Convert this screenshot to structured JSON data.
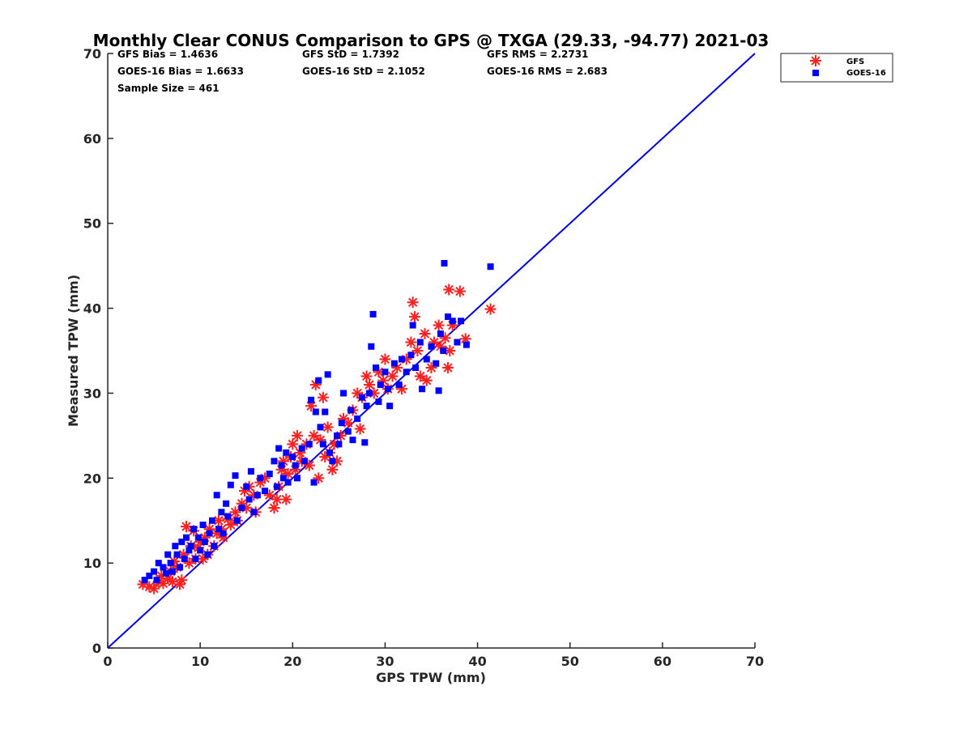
{
  "chart_data": {
    "type": "scatter",
    "title": "Monthly Clear CONUS Comparison to GPS @ TXGA (29.33, -94.77) 2021-03",
    "xlabel": "GPS TPW (mm)",
    "ylabel": "Measured TPW (mm)",
    "xlim": [
      0,
      70
    ],
    "ylim": [
      0,
      70
    ],
    "xticks": [
      "0",
      "10",
      "20",
      "30",
      "40",
      "50",
      "60",
      "70"
    ],
    "yticks": [
      "0",
      "10",
      "20",
      "30",
      "40",
      "50",
      "60",
      "70"
    ],
    "grid": false,
    "legend_position": "top-right outside",
    "stats": {
      "gfs_bias": "GFS Bias = 1.4636",
      "gfs_std": "GFS StD = 1.7392",
      "gfs_rms": "GFS RMS = 2.2731",
      "goes_bias": "GOES-16 Bias = 1.6633",
      "goes_std": "GOES-16 StD = 2.1052",
      "goes_rms": "GOES-16 RMS = 2.683",
      "sample_size": "Sample Size = 461"
    },
    "reference_line": {
      "x": [
        0,
        70
      ],
      "y": [
        0,
        70
      ],
      "color": "#0000dd"
    },
    "series": [
      {
        "name": "GFS",
        "marker": "asterisk",
        "color": "#ff2020",
        "points": [
          [
            3.8,
            7.5
          ],
          [
            4.5,
            7.2
          ],
          [
            5.0,
            7.0
          ],
          [
            5.5,
            7.8
          ],
          [
            5.8,
            8.5
          ],
          [
            6.0,
            7.6
          ],
          [
            6.5,
            8.2
          ],
          [
            6.8,
            9.0
          ],
          [
            7.0,
            7.8
          ],
          [
            7.2,
            10.2
          ],
          [
            7.5,
            9.5
          ],
          [
            7.8,
            7.5
          ],
          [
            8.0,
            8.0
          ],
          [
            8.2,
            11.0
          ],
          [
            8.5,
            14.3
          ],
          [
            8.8,
            10.0
          ],
          [
            9.0,
            12.0
          ],
          [
            9.3,
            13.8
          ],
          [
            9.5,
            10.5
          ],
          [
            9.8,
            11.8
          ],
          [
            10.0,
            12.5
          ],
          [
            10.3,
            10.5
          ],
          [
            10.5,
            13.0
          ],
          [
            10.8,
            11.0
          ],
          [
            11.0,
            14.0
          ],
          [
            11.5,
            12.0
          ],
          [
            11.8,
            13.5
          ],
          [
            12.0,
            15.0
          ],
          [
            12.3,
            14.0
          ],
          [
            12.5,
            13.0
          ],
          [
            13.0,
            15.2
          ],
          [
            13.3,
            14.5
          ],
          [
            13.8,
            16.0
          ],
          [
            14.0,
            15.0
          ],
          [
            14.5,
            17.0
          ],
          [
            14.8,
            18.5
          ],
          [
            15.0,
            16.5
          ],
          [
            15.3,
            19.0
          ],
          [
            15.8,
            18.0
          ],
          [
            16.0,
            16.0
          ],
          [
            16.5,
            19.5
          ],
          [
            17.0,
            20.0
          ],
          [
            17.5,
            18.0
          ],
          [
            18.0,
            16.5
          ],
          [
            18.3,
            17.5
          ],
          [
            18.5,
            19.0
          ],
          [
            18.8,
            21.0
          ],
          [
            19.0,
            22.0
          ],
          [
            19.3,
            17.5
          ],
          [
            19.5,
            20.5
          ],
          [
            19.8,
            22.5
          ],
          [
            20.0,
            24.0
          ],
          [
            20.3,
            21.0
          ],
          [
            20.5,
            25.0
          ],
          [
            20.8,
            23.0
          ],
          [
            21.0,
            22.0
          ],
          [
            21.5,
            24.0
          ],
          [
            21.8,
            21.5
          ],
          [
            22.0,
            28.5
          ],
          [
            22.3,
            25.0
          ],
          [
            22.5,
            31.0
          ],
          [
            22.8,
            20.0
          ],
          [
            23.0,
            24.5
          ],
          [
            23.3,
            29.5
          ],
          [
            23.5,
            22.5
          ],
          [
            23.8,
            26.0
          ],
          [
            24.0,
            23.0
          ],
          [
            24.3,
            21.0
          ],
          [
            24.5,
            24.0
          ],
          [
            24.8,
            22.0
          ],
          [
            25.2,
            25.0
          ],
          [
            25.5,
            27.0
          ],
          [
            26.0,
            26.5
          ],
          [
            26.5,
            28.0
          ],
          [
            27.0,
            30.0
          ],
          [
            27.3,
            25.8
          ],
          [
            27.5,
            29.5
          ],
          [
            28.0,
            32.0
          ],
          [
            28.3,
            31.0
          ],
          [
            28.8,
            30.0
          ],
          [
            29.3,
            32.5
          ],
          [
            29.8,
            31.5
          ],
          [
            30.0,
            34.0
          ],
          [
            30.3,
            30.5
          ],
          [
            30.8,
            32.0
          ],
          [
            31.3,
            33.0
          ],
          [
            31.8,
            30.5
          ],
          [
            32.3,
            34.0
          ],
          [
            32.8,
            36.0
          ],
          [
            33.0,
            40.7
          ],
          [
            33.2,
            39.0
          ],
          [
            33.5,
            35.0
          ],
          [
            33.8,
            32.0
          ],
          [
            34.3,
            37.0
          ],
          [
            34.5,
            31.5
          ],
          [
            35.0,
            33.0
          ],
          [
            35.3,
            36.0
          ],
          [
            35.8,
            38.0
          ],
          [
            36.0,
            35.5
          ],
          [
            36.5,
            36.5
          ],
          [
            36.8,
            33.0
          ],
          [
            37.0,
            35.0
          ],
          [
            36.9,
            42.2
          ],
          [
            37.3,
            38.0
          ],
          [
            38.1,
            42.0
          ],
          [
            38.7,
            36.4
          ],
          [
            41.4,
            39.9
          ]
        ]
      },
      {
        "name": "GOES-16",
        "marker": "square",
        "color": "#0000ff",
        "points": [
          [
            4.0,
            8.0
          ],
          [
            4.5,
            8.5
          ],
          [
            5.0,
            9.0
          ],
          [
            5.3,
            8.0
          ],
          [
            5.5,
            10.0
          ],
          [
            6.0,
            9.5
          ],
          [
            6.3,
            8.8
          ],
          [
            6.5,
            11.0
          ],
          [
            6.8,
            10.0
          ],
          [
            7.0,
            9.0
          ],
          [
            7.3,
            12.0
          ],
          [
            7.5,
            11.0
          ],
          [
            7.8,
            9.5
          ],
          [
            8.0,
            12.5
          ],
          [
            8.3,
            10.5
          ],
          [
            8.5,
            13.0
          ],
          [
            8.8,
            11.5
          ],
          [
            9.0,
            12.0
          ],
          [
            9.3,
            14.0
          ],
          [
            9.5,
            10.5
          ],
          [
            9.8,
            13.0
          ],
          [
            10.0,
            11.5
          ],
          [
            10.3,
            14.5
          ],
          [
            10.5,
            12.5
          ],
          [
            10.8,
            11.0
          ],
          [
            11.0,
            13.5
          ],
          [
            11.3,
            15.0
          ],
          [
            11.5,
            12.0
          ],
          [
            11.8,
            18.0
          ],
          [
            12.0,
            14.0
          ],
          [
            12.3,
            16.0
          ],
          [
            12.5,
            13.5
          ],
          [
            12.8,
            17.0
          ],
          [
            13.0,
            15.5
          ],
          [
            13.3,
            19.2
          ],
          [
            13.8,
            20.3
          ],
          [
            14.0,
            15.0
          ],
          [
            14.5,
            16.5
          ],
          [
            15.0,
            19.0
          ],
          [
            15.3,
            17.5
          ],
          [
            15.5,
            20.8
          ],
          [
            15.8,
            16.0
          ],
          [
            16.2,
            18.0
          ],
          [
            16.5,
            20.0
          ],
          [
            17.0,
            18.5
          ],
          [
            17.5,
            20.5
          ],
          [
            18.0,
            22.0
          ],
          [
            18.3,
            19.0
          ],
          [
            18.5,
            23.5
          ],
          [
            18.8,
            21.5
          ],
          [
            19.0,
            20.0
          ],
          [
            19.3,
            23.0
          ],
          [
            19.5,
            19.5
          ],
          [
            20.0,
            22.5
          ],
          [
            20.3,
            21.5
          ],
          [
            20.5,
            20.0
          ],
          [
            21.0,
            23.5
          ],
          [
            21.3,
            22.0
          ],
          [
            21.8,
            24.0
          ],
          [
            22.0,
            29.2
          ],
          [
            22.3,
            19.5
          ],
          [
            22.5,
            27.8
          ],
          [
            22.8,
            31.5
          ],
          [
            23.0,
            26.0
          ],
          [
            23.3,
            24.0
          ],
          [
            23.5,
            27.8
          ],
          [
            23.8,
            32.2
          ],
          [
            24.0,
            23.0
          ],
          [
            24.3,
            22.0
          ],
          [
            24.8,
            25.0
          ],
          [
            25.0,
            24.0
          ],
          [
            25.3,
            26.5
          ],
          [
            25.5,
            30.0
          ],
          [
            26.0,
            25.5
          ],
          [
            26.3,
            28.0
          ],
          [
            26.5,
            24.5
          ],
          [
            27.0,
            27.0
          ],
          [
            27.5,
            29.5
          ],
          [
            27.8,
            24.2
          ],
          [
            28.0,
            28.5
          ],
          [
            28.3,
            30.0
          ],
          [
            28.5,
            35.5
          ],
          [
            28.7,
            39.3
          ],
          [
            29.0,
            33.0
          ],
          [
            29.3,
            29.0
          ],
          [
            29.5,
            31.0
          ],
          [
            30.0,
            32.5
          ],
          [
            30.3,
            30.5
          ],
          [
            30.5,
            28.5
          ],
          [
            31.0,
            33.5
          ],
          [
            31.5,
            31.0
          ],
          [
            31.8,
            34.0
          ],
          [
            32.3,
            32.5
          ],
          [
            32.8,
            34.5
          ],
          [
            33.0,
            38.0
          ],
          [
            33.3,
            33.0
          ],
          [
            33.8,
            36.0
          ],
          [
            34.0,
            30.5
          ],
          [
            34.5,
            34.0
          ],
          [
            35.0,
            35.5
          ],
          [
            35.5,
            33.5
          ],
          [
            35.8,
            30.3
          ],
          [
            36.0,
            37.0
          ],
          [
            36.3,
            35.0
          ],
          [
            36.4,
            45.3
          ],
          [
            36.8,
            39.0
          ],
          [
            37.3,
            38.5
          ],
          [
            37.8,
            36.0
          ],
          [
            38.2,
            38.5
          ],
          [
            38.8,
            35.7
          ],
          [
            41.4,
            44.9
          ]
        ]
      }
    ]
  }
}
